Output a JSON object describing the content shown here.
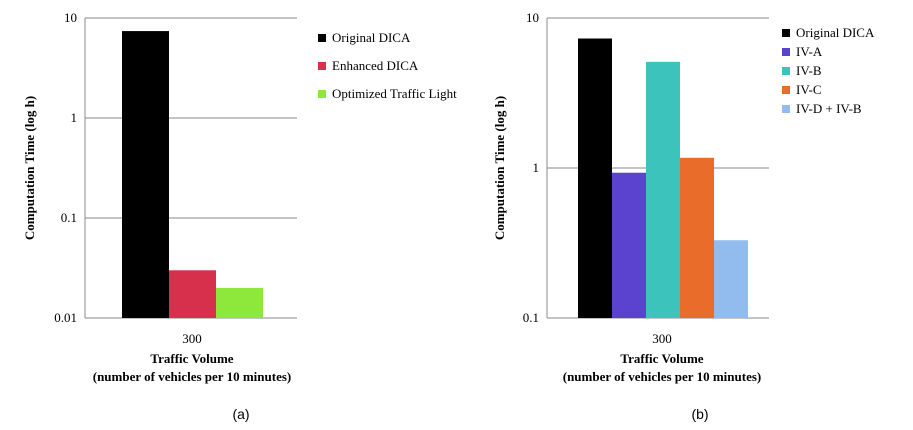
{
  "chart_data": [
    {
      "type": "bar",
      "id": "a",
      "caption": "(a)",
      "scale": "log",
      "ylim": [
        0.01,
        10
      ],
      "yticks": [
        "0.01",
        "0.1",
        "1",
        "10"
      ],
      "ylabel": "Computation  Time (log h)",
      "categories": [
        "300"
      ],
      "xlabel_line1": "Traffic Volume",
      "xlabel_line2": "(number  of vehicles per 10 minutes)",
      "series": [
        {
          "name": "Original DICA",
          "color": "#000000",
          "values": [
            7.4
          ]
        },
        {
          "name": "Enhanced DICA",
          "color": "#d6304d",
          "values": [
            0.03
          ]
        },
        {
          "name": "Optimized Traffic Light",
          "color": "#8ee83b",
          "values": [
            0.02
          ]
        }
      ]
    },
    {
      "type": "bar",
      "id": "b",
      "caption": "(b)",
      "scale": "log",
      "ylim": [
        0.1,
        10
      ],
      "yticks": [
        "0.1",
        "1",
        "10"
      ],
      "ylabel": "Computation  Time (log h)",
      "categories": [
        "300"
      ],
      "xlabel_line1": "Traffic Volume",
      "xlabel_line2": "(number  of vehicles per 10 minutes)",
      "series": [
        {
          "name": "Original DICA",
          "color": "#000000",
          "values": [
            7.3
          ]
        },
        {
          "name": "IV-A",
          "color": "#5b43d0",
          "values": [
            0.93
          ]
        },
        {
          "name": "IV-B",
          "color": "#3cc3bc",
          "values": [
            5.1
          ]
        },
        {
          "name": "IV-C",
          "color": "#ea6c2a",
          "values": [
            1.17
          ]
        },
        {
          "name": "IV-D + IV-B",
          "color": "#93bcee",
          "values": [
            0.33
          ]
        }
      ]
    }
  ]
}
